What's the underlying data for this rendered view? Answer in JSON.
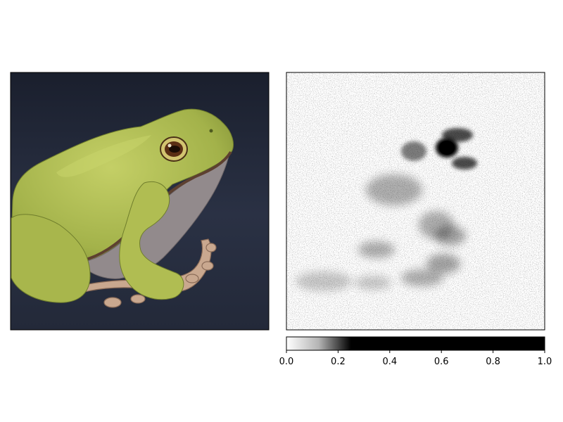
{
  "chart_data": [
    {
      "type": "image",
      "panel": "left",
      "content": "photo of a green tree frog on a dark blue-gray background",
      "axes_ticks": false,
      "colors": {
        "background": "#262c3e",
        "frog_green": "#a9b850",
        "frog_light": "#c9d46a",
        "frog_dark": "#7b8a32",
        "belly": "#8f8688",
        "toes": "#c8a98e",
        "eye": "#5a2e14"
      }
    },
    {
      "type": "heatmap",
      "panel": "right",
      "colormap": "gray_r",
      "content": "saliency map; strongest values near the frog's eye, weaker traces along the legs",
      "axes_ticks": false,
      "colorbar": {
        "orientation": "horizontal",
        "ticks": [
          "0.0",
          "0.2",
          "0.4",
          "0.6",
          "0.8",
          "1.0"
        ],
        "range": [
          0.0,
          1.0
        ],
        "saturation_value": 0.25
      },
      "hotspots": [
        {
          "name": "eye",
          "value": 1.0
        },
        {
          "name": "brow",
          "value": 0.7
        },
        {
          "name": "left-of-eye",
          "value": 0.5
        },
        {
          "name": "mid-body",
          "value": 0.3
        },
        {
          "name": "foreleg",
          "value": 0.35
        },
        {
          "name": "hind-leg",
          "value": 0.3
        },
        {
          "name": "lower-left",
          "value": 0.2
        }
      ]
    }
  ]
}
